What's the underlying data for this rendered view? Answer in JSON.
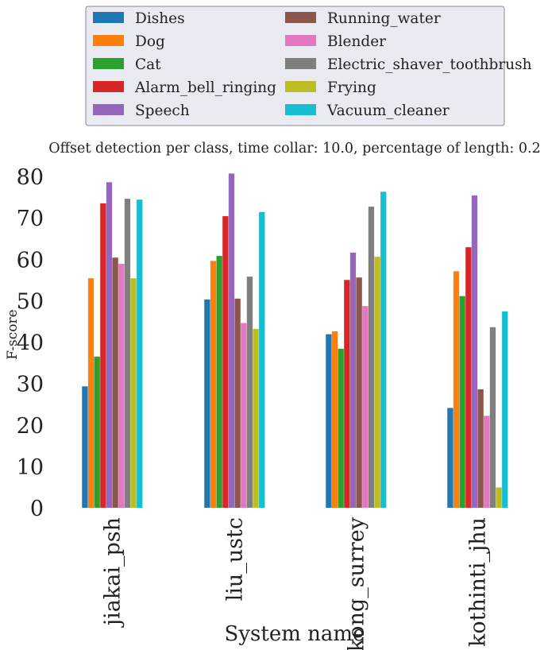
{
  "chart_data": {
    "type": "bar",
    "title": "Offset detection per class, time collar: 10.0, percentage of length: 0.2",
    "xlabel": "System name",
    "ylabel": "F-score",
    "ylim": [
      0,
      80
    ],
    "yticks": [
      0,
      10,
      20,
      30,
      40,
      50,
      60,
      70,
      80
    ],
    "grid": false,
    "legend_position": "top",
    "categories": [
      "jiakai_psh",
      "liu_ustc",
      "kong_surrey",
      "kothinti_jhu"
    ],
    "series": [
      {
        "name": "Dishes",
        "color": "#1f77b4",
        "values": [
          29.3,
          50.3,
          41.9,
          24.1
        ]
      },
      {
        "name": "Dog",
        "color": "#ff7f0e",
        "values": [
          55.4,
          59.6,
          42.6,
          57.1
        ]
      },
      {
        "name": "Cat",
        "color": "#2ca02c",
        "values": [
          36.5,
          60.8,
          38.4,
          51.1
        ]
      },
      {
        "name": "Alarm_bell_ringing",
        "color": "#d62728",
        "values": [
          73.5,
          70.4,
          55.0,
          62.9
        ]
      },
      {
        "name": "Speech",
        "color": "#9467bd",
        "values": [
          78.6,
          80.7,
          61.6,
          75.4
        ]
      },
      {
        "name": "Running_water",
        "color": "#8c564b",
        "values": [
          60.4,
          50.5,
          55.6,
          28.6
        ]
      },
      {
        "name": "Blender",
        "color": "#e377c2",
        "values": [
          58.9,
          44.6,
          48.7,
          22.2
        ]
      },
      {
        "name": "Electric_shaver_toothbrush",
        "color": "#7f7f7f",
        "values": [
          74.6,
          55.8,
          72.7,
          43.6
        ]
      },
      {
        "name": "Frying",
        "color": "#bcbd22",
        "values": [
          55.4,
          43.2,
          60.6,
          4.9
        ]
      },
      {
        "name": "Vacuum_cleaner",
        "color": "#17becf",
        "values": [
          74.4,
          71.4,
          76.3,
          47.4
        ]
      }
    ]
  }
}
